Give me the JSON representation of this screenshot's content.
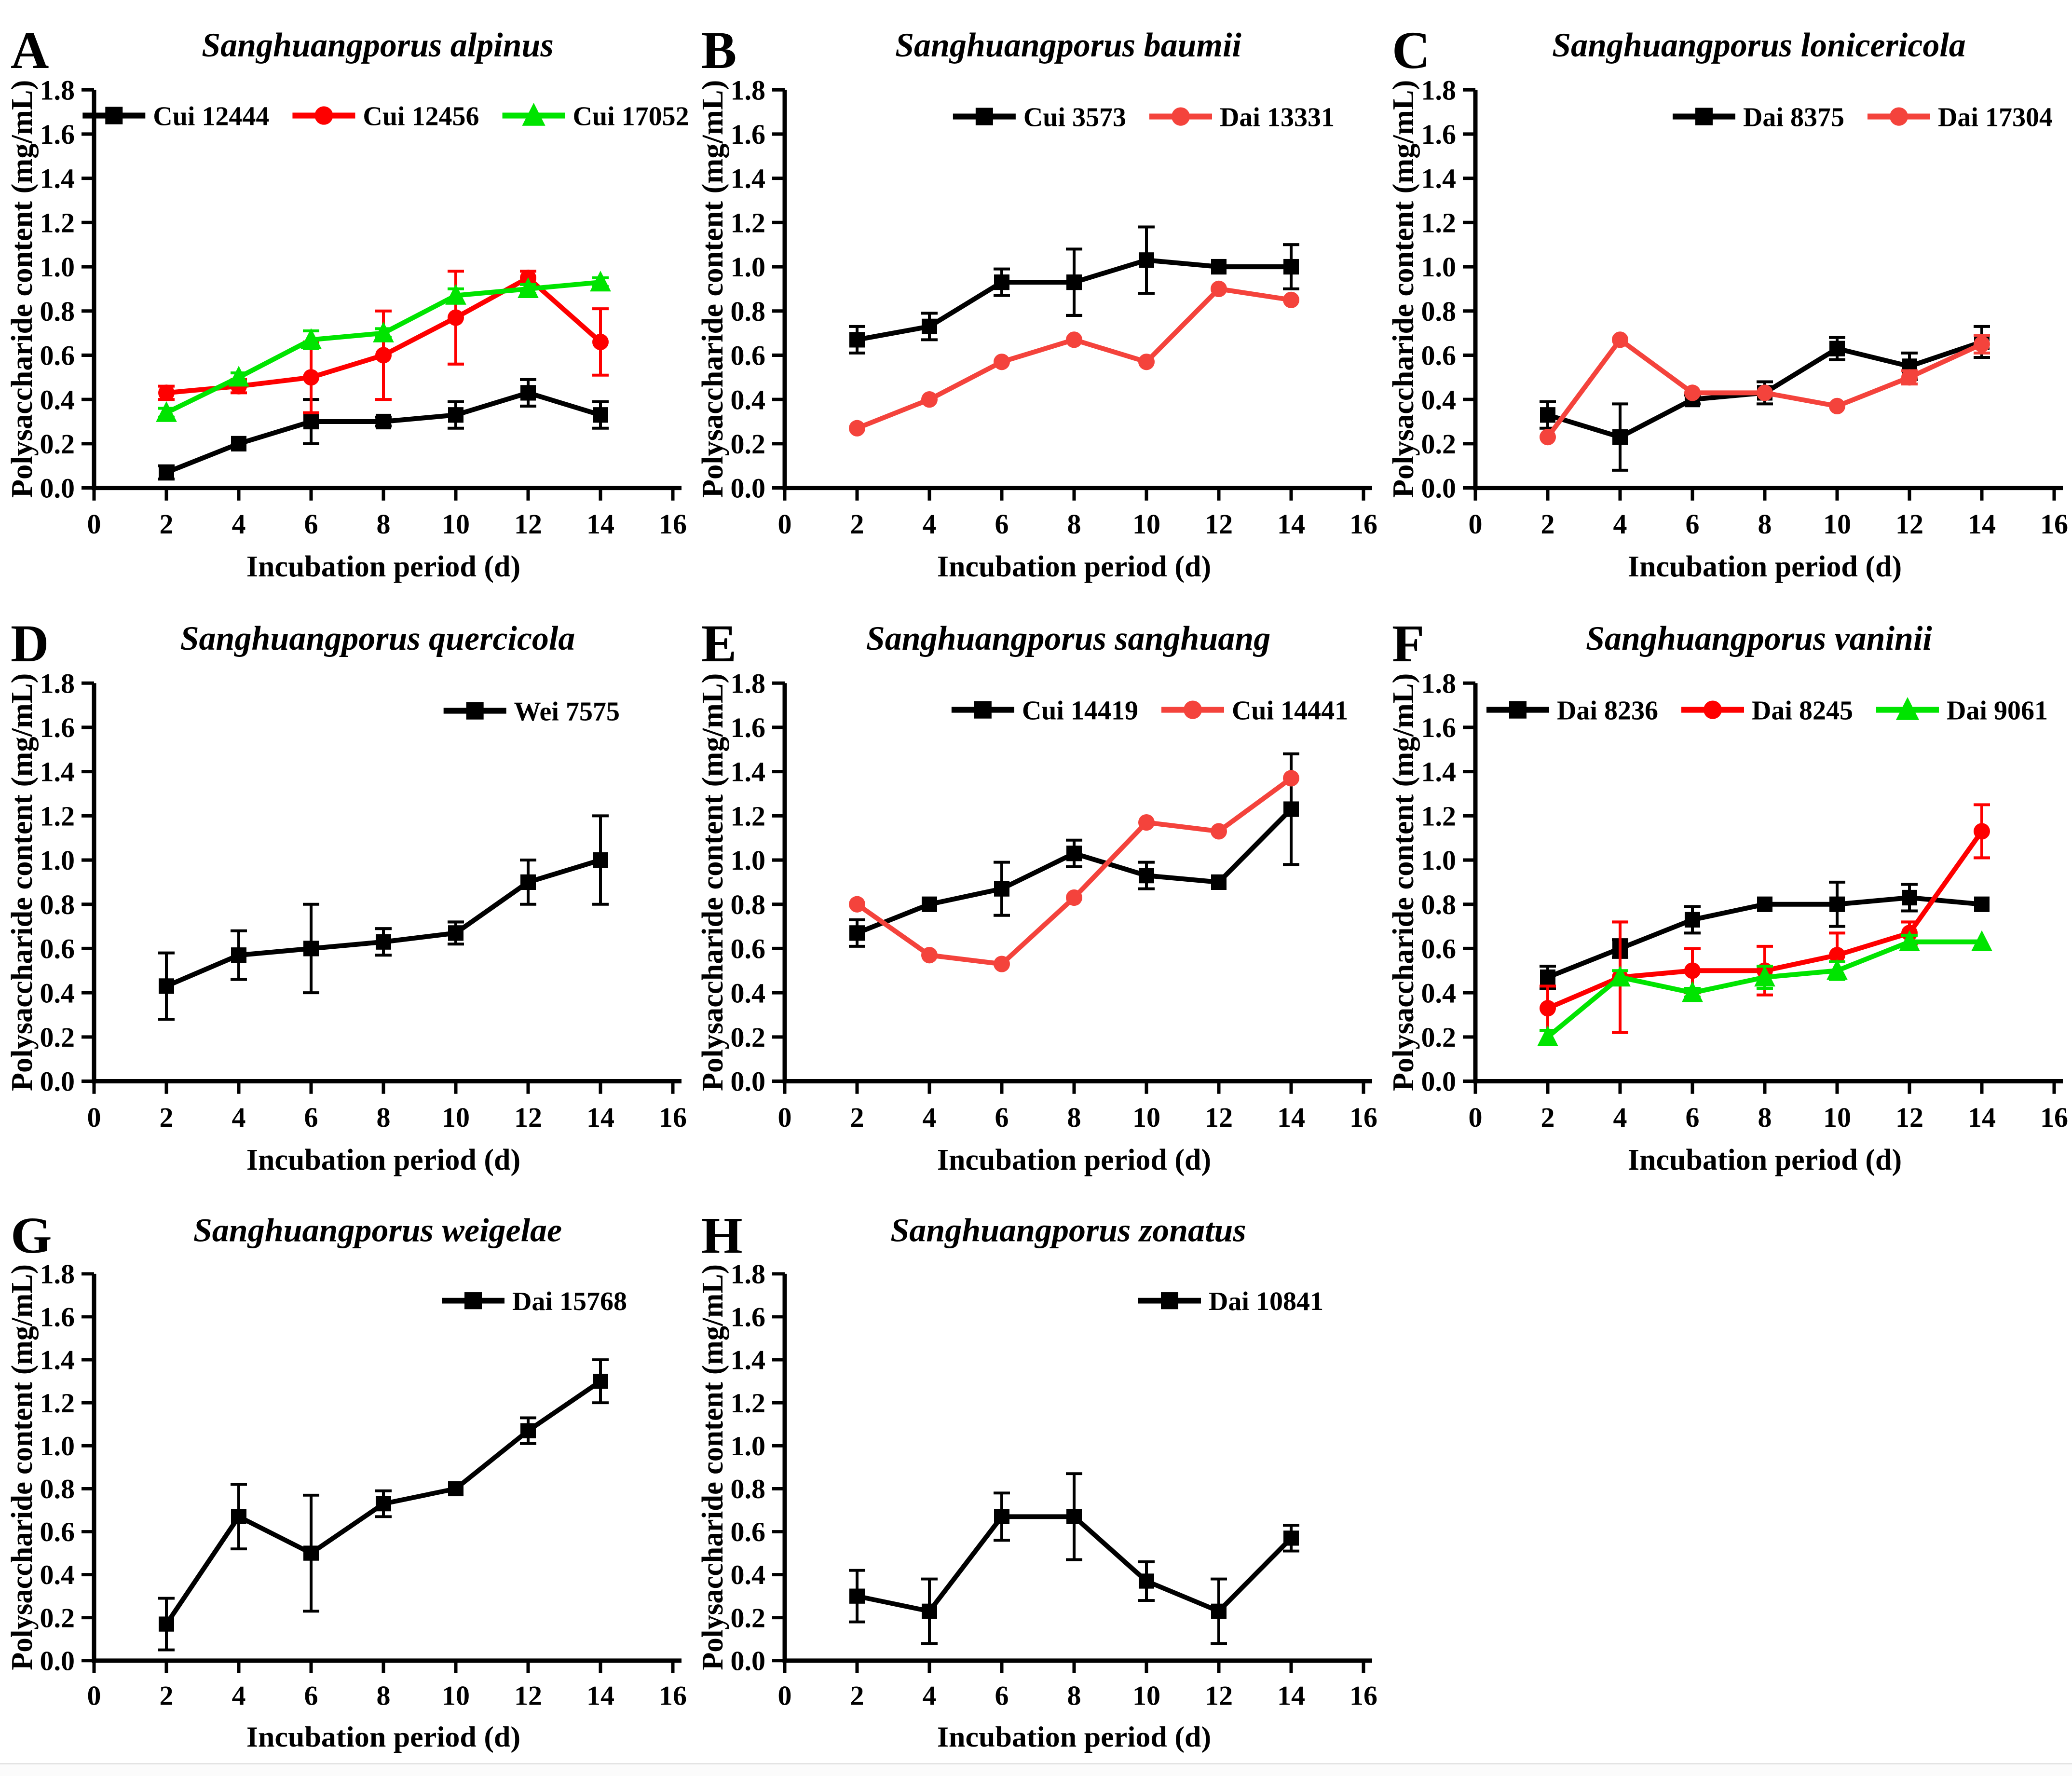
{
  "figure": {
    "xlabel": "Incubation period (d)",
    "ylabel": "Polysaccharide content (mg/mL)",
    "colors": {
      "black": "#000000",
      "red": "#fe0000",
      "salmon": "#f4433c",
      "green": "#00e400"
    }
  },
  "chart_data": [
    {
      "type": "line",
      "panel": "A",
      "title": "Sanghuangporus alpinus",
      "xlabel": "Incubation period (d)",
      "ylabel": "Polysaccharide content (mg/mL)",
      "xlim": [
        0,
        16
      ],
      "ylim": [
        0,
        1.8
      ],
      "grid": false,
      "xticks": [
        0,
        2,
        4,
        6,
        8,
        10,
        12,
        14,
        16
      ],
      "yticks": [
        0,
        0.2,
        0.4,
        0.6,
        0.8,
        1.0,
        1.2,
        1.4,
        1.6,
        1.8
      ],
      "x": [
        2,
        4,
        6,
        8,
        10,
        12,
        14
      ],
      "legend": {
        "position": "top-inside",
        "align": "center",
        "cx": 800,
        "y": 238
      },
      "series": [
        {
          "name": "Cui 12444",
          "color": "#000000",
          "marker": "square",
          "values": [
            0.07,
            0.2,
            0.3,
            0.3,
            0.33,
            0.43,
            0.33
          ],
          "errors": [
            0.03,
            0.01,
            0.1,
            0.02,
            0.06,
            0.06,
            0.06
          ]
        },
        {
          "name": "Cui 12456",
          "color": "#fe0000",
          "marker": "circle",
          "values": [
            0.43,
            0.46,
            0.5,
            0.6,
            0.77,
            0.95,
            0.66
          ],
          "errors": [
            0.03,
            0.03,
            0.16,
            0.2,
            0.21,
            0.03,
            0.15
          ]
        },
        {
          "name": "Cui 17052",
          "color": "#00e400",
          "marker": "triangle",
          "values": [
            0.34,
            0.5,
            0.67,
            0.7,
            0.87,
            0.9,
            0.93
          ],
          "errors": [
            0.02,
            0.02,
            0.04,
            0.02,
            0.03,
            0.02,
            0.02
          ]
        }
      ]
    },
    {
      "type": "line",
      "panel": "B",
      "title": "Sanghuangporus baumii",
      "xlabel": "Incubation period (d)",
      "ylabel": "Polysaccharide content (mg/mL)",
      "xlim": [
        0,
        16
      ],
      "ylim": [
        0,
        1.8
      ],
      "grid": false,
      "xticks": [
        0,
        2,
        4,
        6,
        8,
        10,
        12,
        14,
        16
      ],
      "yticks": [
        0,
        0.2,
        0.4,
        0.6,
        0.8,
        1.0,
        1.2,
        1.4,
        1.6,
        1.8
      ],
      "x": [
        2,
        4,
        6,
        8,
        10,
        12,
        14
      ],
      "legend": {
        "position": "top-inside",
        "align": "right",
        "right": 1335,
        "y": 240
      },
      "series": [
        {
          "name": "Cui 3573",
          "color": "#000000",
          "marker": "square",
          "values": [
            0.67,
            0.73,
            0.93,
            0.93,
            1.03,
            1.0,
            1.0
          ],
          "errors": [
            0.06,
            0.06,
            0.06,
            0.15,
            0.15,
            0.01,
            0.1
          ]
        },
        {
          "name": "Dai 13331",
          "color": "#f4433c",
          "marker": "circle",
          "values": [
            0.27,
            0.4,
            0.57,
            0.67,
            0.57,
            0.9,
            0.85
          ],
          "errors": [
            0,
            0,
            0,
            0,
            0,
            0,
            0
          ]
        }
      ]
    },
    {
      "type": "line",
      "panel": "C",
      "title": "Sanghuangporus lonicericola",
      "xlabel": "Incubation period (d)",
      "ylabel": "Polysaccharide content (mg/mL)",
      "xlim": [
        0,
        16
      ],
      "ylim": [
        0,
        1.8
      ],
      "grid": false,
      "xticks": [
        0,
        2,
        4,
        6,
        8,
        10,
        12,
        14,
        16
      ],
      "yticks": [
        0,
        0.2,
        0.4,
        0.6,
        0.8,
        1.0,
        1.2,
        1.4,
        1.6,
        1.8
      ],
      "x": [
        2,
        4,
        6,
        8,
        10,
        12,
        14
      ],
      "legend": {
        "position": "top-inside",
        "align": "right",
        "right": 1392,
        "y": 240
      },
      "series": [
        {
          "name": "Dai 8375",
          "color": "#000000",
          "marker": "square",
          "values": [
            0.33,
            0.23,
            0.4,
            0.43,
            0.63,
            0.55,
            0.66
          ],
          "errors": [
            0.06,
            0.15,
            0.02,
            0.05,
            0.05,
            0.06,
            0.07
          ]
        },
        {
          "name": "Dai 17304",
          "color": "#f4433c",
          "marker": "circle",
          "values": [
            0.23,
            0.67,
            0.43,
            0.43,
            0.37,
            0.5,
            0.65
          ],
          "errors": [
            0,
            0,
            0,
            0,
            0,
            0.03,
            0.04
          ]
        }
      ]
    },
    {
      "type": "line",
      "panel": "D",
      "title": "Sanghuangporus quercicola",
      "xlabel": "Incubation period (d)",
      "ylabel": "Polysaccharide content (mg/mL)",
      "xlim": [
        0,
        16
      ],
      "ylim": [
        0,
        1.8
      ],
      "grid": false,
      "xticks": [
        0,
        2,
        4,
        6,
        8,
        10,
        12,
        14,
        16
      ],
      "yticks": [
        0,
        0.2,
        0.4,
        0.6,
        0.8,
        1.0,
        1.2,
        1.4,
        1.6,
        1.8
      ],
      "x": [
        2,
        4,
        6,
        8,
        10,
        12,
        14
      ],
      "legend": {
        "position": "top-inside",
        "align": "right",
        "right": 1285,
        "y": 242
      },
      "series": [
        {
          "name": "Wei 7575",
          "color": "#000000",
          "marker": "square",
          "values": [
            0.43,
            0.57,
            0.6,
            0.63,
            0.67,
            0.9,
            1.0
          ],
          "errors": [
            0.15,
            0.11,
            0.2,
            0.06,
            0.05,
            0.1,
            0.2
          ]
        }
      ]
    },
    {
      "type": "line",
      "panel": "E",
      "title": "Sanghuangporus sanghuang",
      "xlabel": "Incubation period (d)",
      "ylabel": "Polysaccharide content (mg/mL)",
      "xlim": [
        0,
        16
      ],
      "ylim": [
        0,
        1.8
      ],
      "grid": false,
      "xticks": [
        0,
        2,
        4,
        6,
        8,
        10,
        12,
        14,
        16
      ],
      "yticks": [
        0,
        0.2,
        0.4,
        0.6,
        0.8,
        1.0,
        1.2,
        1.4,
        1.6,
        1.8
      ],
      "x": [
        2,
        4,
        6,
        8,
        10,
        12,
        14
      ],
      "legend": {
        "position": "top-inside",
        "align": "center",
        "cx": 952,
        "y": 240
      },
      "series": [
        {
          "name": "Cui 14419",
          "color": "#000000",
          "marker": "square",
          "values": [
            0.67,
            0.8,
            0.87,
            1.03,
            0.93,
            0.9,
            1.23
          ],
          "errors": [
            0.06,
            0.01,
            0.12,
            0.06,
            0.06,
            0.01,
            0.25
          ]
        },
        {
          "name": "Cui 14441",
          "color": "#f4433c",
          "marker": "circle",
          "values": [
            0.8,
            0.57,
            0.53,
            0.83,
            1.17,
            1.13,
            1.37
          ],
          "errors": [
            0,
            0,
            0,
            0,
            0,
            0,
            0
          ]
        }
      ]
    },
    {
      "type": "line",
      "panel": "F",
      "title": "Sanghuangporus vaninii",
      "xlabel": "Incubation period (d)",
      "ylabel": "Polysaccharide content (mg/mL)",
      "xlim": [
        0,
        16
      ],
      "ylim": [
        0,
        1.8
      ],
      "grid": false,
      "xticks": [
        0,
        2,
        4,
        6,
        8,
        10,
        12,
        14,
        16
      ],
      "yticks": [
        0,
        0.2,
        0.4,
        0.6,
        0.8,
        1.0,
        1.2,
        1.4,
        1.6,
        1.8
      ],
      "x": [
        2,
        4,
        6,
        8,
        10,
        12,
        14
      ],
      "legend": {
        "position": "top-inside",
        "align": "center",
        "cx": 800,
        "y": 240
      },
      "series": [
        {
          "name": "Dai 8236",
          "color": "#000000",
          "marker": "square",
          "values": [
            0.47,
            0.6,
            0.73,
            0.8,
            0.8,
            0.83,
            0.8
          ],
          "errors": [
            0.05,
            0.04,
            0.06,
            0.01,
            0.1,
            0.06,
            0.01
          ]
        },
        {
          "name": "Dai 8245",
          "color": "#fe0000",
          "marker": "circle",
          "values": [
            0.33,
            0.47,
            0.5,
            0.5,
            0.57,
            0.67,
            1.13
          ],
          "errors": [
            0.1,
            0.25,
            0.1,
            0.11,
            0.1,
            0.05,
            0.12
          ]
        },
        {
          "name": "Dai 9061",
          "color": "#00e400",
          "marker": "triangle",
          "values": [
            0.2,
            0.47,
            0.4,
            0.47,
            0.5,
            0.63,
            0.63
          ],
          "errors": [
            0.03,
            0.03,
            0.02,
            0.05,
            0.04,
            0.03,
            0.01
          ]
        }
      ]
    },
    {
      "type": "line",
      "panel": "G",
      "title": "Sanghuangporus weigelae",
      "xlabel": "Incubation period (d)",
      "ylabel": "Polysaccharide content (mg/mL)",
      "xlim": [
        0,
        16
      ],
      "ylim": [
        0,
        1.8
      ],
      "grid": false,
      "xticks": [
        0,
        2,
        4,
        6,
        8,
        10,
        12,
        14,
        16
      ],
      "yticks": [
        0,
        0.2,
        0.4,
        0.6,
        0.8,
        1.0,
        1.2,
        1.4,
        1.6,
        1.8
      ],
      "x": [
        2,
        4,
        6,
        8,
        10,
        12,
        14
      ],
      "legend": {
        "position": "top-inside",
        "align": "right",
        "right": 1300,
        "y": 242
      },
      "series": [
        {
          "name": "Dai 15768",
          "color": "#000000",
          "marker": "square",
          "values": [
            0.17,
            0.67,
            0.5,
            0.73,
            0.8,
            1.07,
            1.3
          ],
          "errors": [
            0.12,
            0.15,
            0.27,
            0.06,
            0.01,
            0.06,
            0.1
          ]
        }
      ]
    },
    {
      "type": "line",
      "panel": "H",
      "title": "Sanghuangporus zonatus",
      "xlabel": "Incubation period (d)",
      "ylabel": "Polysaccharide content (mg/mL)",
      "xlim": [
        0,
        16
      ],
      "ylim": [
        0,
        1.8
      ],
      "grid": false,
      "xticks": [
        0,
        2,
        4,
        6,
        8,
        10,
        12,
        14,
        16
      ],
      "yticks": [
        0,
        0.2,
        0.4,
        0.6,
        0.8,
        1.0,
        1.2,
        1.4,
        1.6,
        1.8
      ],
      "x": [
        2,
        4,
        6,
        8,
        10,
        12,
        14
      ],
      "legend": {
        "position": "top-inside",
        "align": "right",
        "right": 1312,
        "y": 242
      },
      "series": [
        {
          "name": "Dai 10841",
          "color": "#000000",
          "marker": "square",
          "values": [
            0.3,
            0.23,
            0.67,
            0.67,
            0.37,
            0.23,
            0.57
          ],
          "errors": [
            0.12,
            0.15,
            0.11,
            0.2,
            0.09,
            0.15,
            0.06
          ]
        }
      ]
    }
  ]
}
